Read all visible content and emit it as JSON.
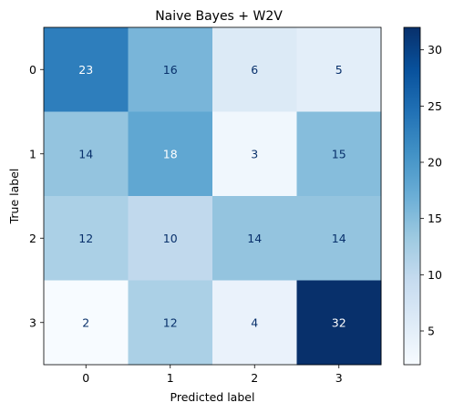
{
  "chart_data": {
    "type": "heatmap",
    "title": "Naive Bayes + W2V",
    "xlabel": "Predicted label",
    "ylabel": "True label",
    "x_categories": [
      "0",
      "1",
      "2",
      "3"
    ],
    "y_categories": [
      "0",
      "1",
      "2",
      "3"
    ],
    "values": [
      [
        23,
        16,
        6,
        5
      ],
      [
        14,
        18,
        3,
        15
      ],
      [
        12,
        10,
        14,
        14
      ],
      [
        2,
        12,
        4,
        32
      ]
    ],
    "colormap": "Blues",
    "colorbar": {
      "min": 2,
      "max": 32,
      "ticks": [
        5,
        10,
        15,
        20,
        25,
        30
      ]
    },
    "text_colors": {
      "light": "#ffffff",
      "dark": "#08306b"
    }
  }
}
